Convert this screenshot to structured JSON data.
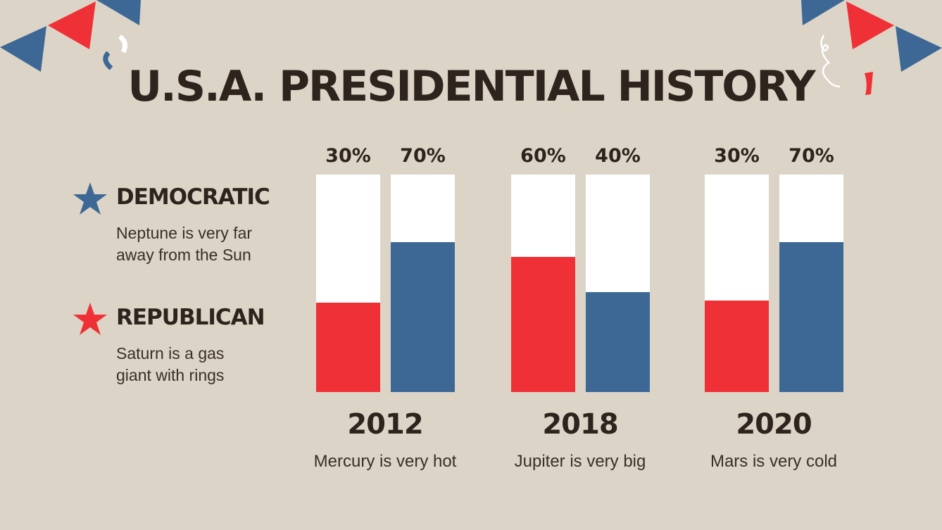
{
  "title": "U.S.A. PRESIDENTIAL HISTORY",
  "colors": {
    "background": "#dcd4c6",
    "democratic": "#3d6896",
    "republican": "#ef3037",
    "empty": "#ffffff",
    "text": "#2e241d"
  },
  "legend": [
    {
      "icon": "star-icon",
      "label": "DEMOCRATIC",
      "desc1": "Neptune is very far",
      "desc2": "away from the Sun",
      "color": "#3d6896"
    },
    {
      "icon": "star-icon",
      "label": "REPUBLICAN",
      "desc1": "Saturn is a gas",
      "desc2": "giant with rings",
      "color": "#ef3037"
    }
  ],
  "chart_data": {
    "type": "bar",
    "categories": [
      "2012",
      "2018",
      "2020"
    ],
    "captions": [
      "Mercury is very hot",
      "Jupiter is very big",
      "Mars is very cold"
    ],
    "series": [
      {
        "name": "REPUBLICAN",
        "color": "#ef3037",
        "labels": [
          "30%",
          "60%",
          "30%"
        ],
        "values": [
          30,
          60,
          30
        ],
        "fill_percent": [
          41,
          62,
          42
        ]
      },
      {
        "name": "DEMOCRATIC",
        "color": "#3d6896",
        "labels": [
          "70%",
          "40%",
          "70%"
        ],
        "values": [
          70,
          40,
          70
        ],
        "fill_percent": [
          69,
          46,
          69
        ]
      }
    ],
    "ylim": [
      0,
      100
    ],
    "grid": false
  }
}
